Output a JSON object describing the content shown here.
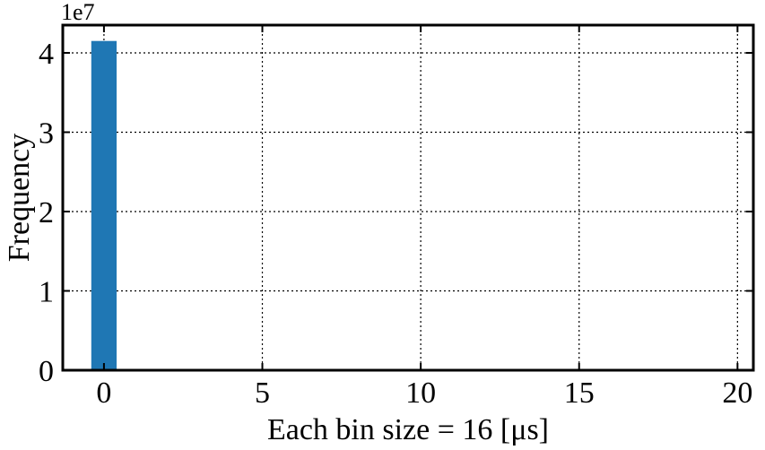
{
  "chart_data": {
    "type": "bar",
    "title": "",
    "xlabel": "Each bin size = 16 [μs]",
    "ylabel": "Frequency",
    "y_offset_text": "1e7",
    "xlim": [
      -1.3,
      20.5
    ],
    "ylim": [
      0,
      43500000
    ],
    "xticks": [
      0,
      5,
      10,
      15,
      20
    ],
    "yticks": [
      0,
      1,
      2,
      3,
      4
    ],
    "y_scale_factor": 10000000,
    "grid": true,
    "grid_style": "dotted",
    "bar_width": 0.8,
    "bar_color": "#1f77b4",
    "bins": [
      0
    ],
    "values": [
      41500000
    ]
  }
}
